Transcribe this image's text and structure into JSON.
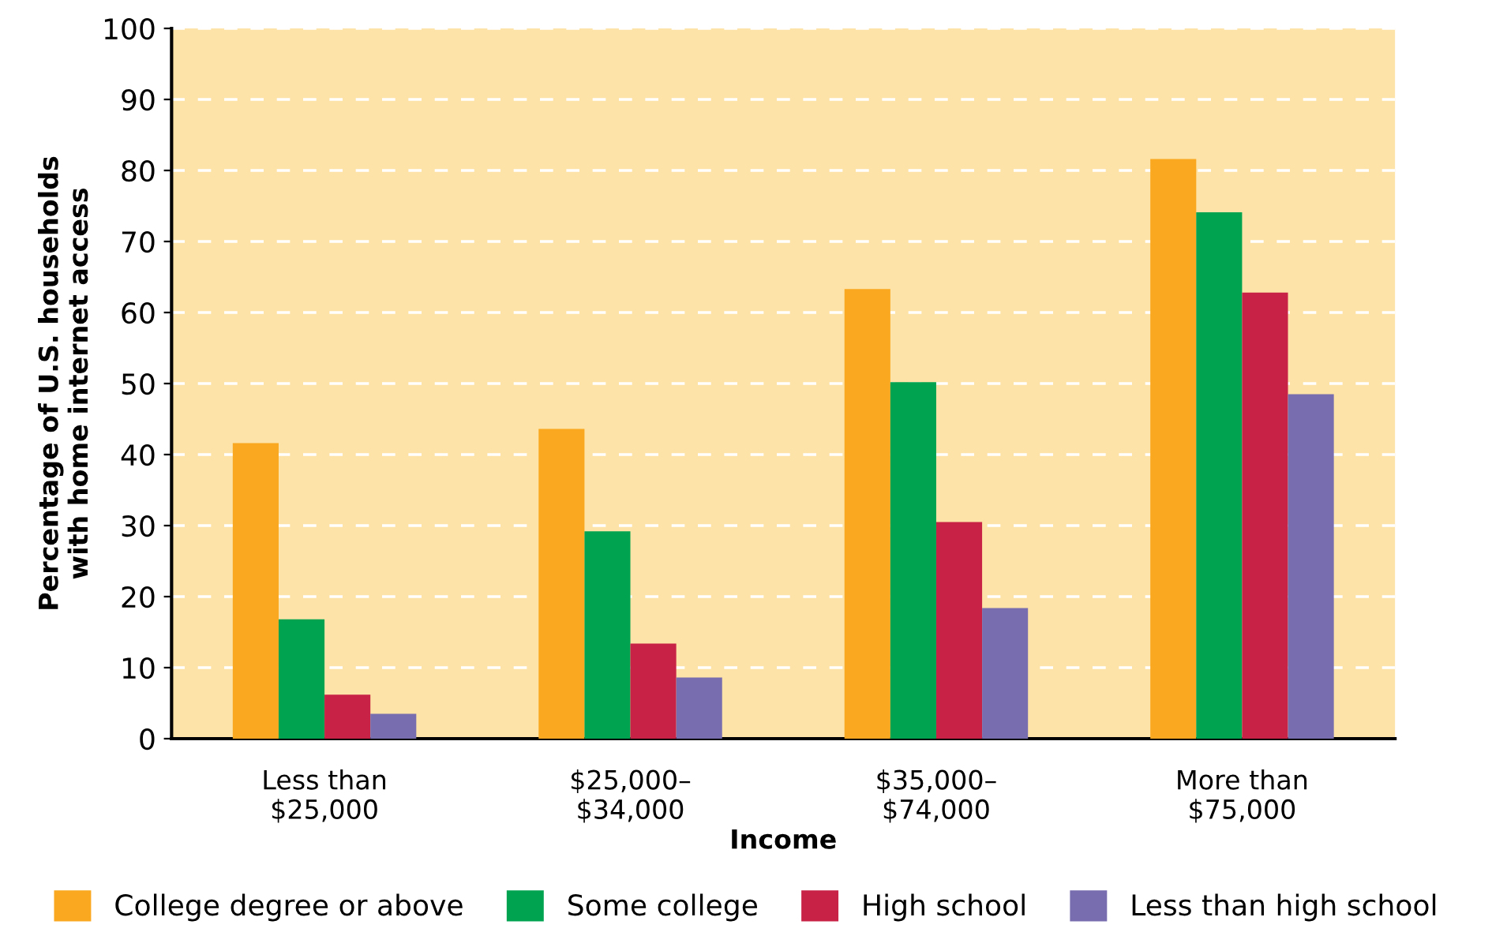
{
  "chart_data": {
    "type": "bar",
    "xlabel": "Income",
    "ylabel": "Percentage of U.S. households\nwith home internet access",
    "categories": [
      "Less than\n$25,000",
      "$25,000–\n$34,000",
      "$35,000–\n$74,000",
      "More than\n$75,000"
    ],
    "series": [
      {
        "name": "College degree or above",
        "color": "#f9a81f",
        "values": [
          41.6,
          43.6,
          63.3,
          81.6
        ]
      },
      {
        "name": "Some college",
        "color": "#00a450",
        "values": [
          16.8,
          29.2,
          50.2,
          74.1
        ]
      },
      {
        "name": "High school",
        "color": "#c82247",
        "values": [
          6.2,
          13.4,
          30.5,
          62.8
        ]
      },
      {
        "name": "Less than high school",
        "color": "#786eaf",
        "values": [
          3.5,
          8.6,
          18.4,
          48.5
        ]
      }
    ],
    "ylim": [
      0,
      100
    ],
    "yticks": [
      0,
      10,
      20,
      30,
      40,
      50,
      60,
      70,
      80,
      90,
      100
    ],
    "grid": "y",
    "legend": "bottom"
  }
}
